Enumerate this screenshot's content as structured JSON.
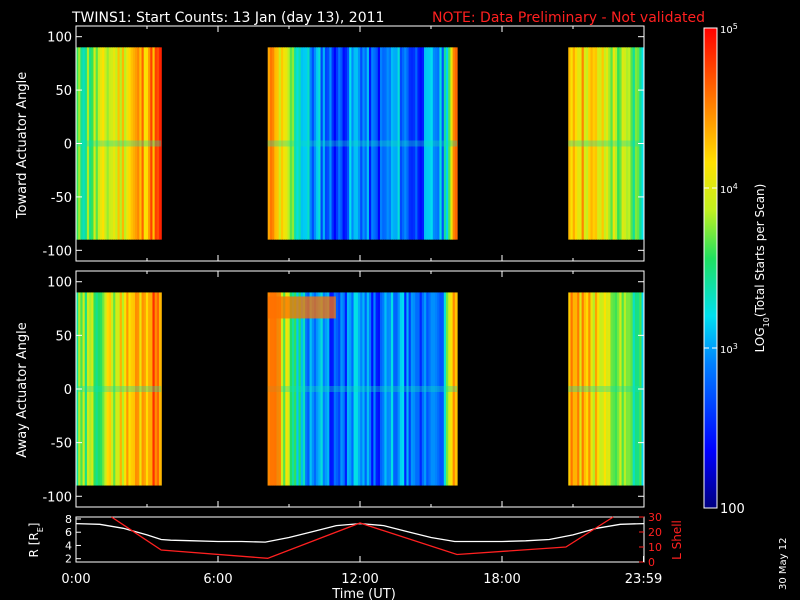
{
  "title": {
    "main": "TWINS1: Start Counts: 13 Jan (day  13), 2011",
    "note": "NOTE: Data Preliminary - Not validated"
  },
  "colors": {
    "background": "#000000",
    "axes": "#ffffff",
    "note": "#ff2020",
    "r_line": "#ffffff",
    "l_line": "#ff2020"
  },
  "colorbar": {
    "label_html": "LOG10(Total Starts per Scan)",
    "ticks": [
      "100",
      "10^3",
      "10^4",
      "10^5"
    ],
    "tick_log_values": [
      2,
      3,
      4,
      5
    ],
    "range_log": [
      2,
      5
    ],
    "colormap": "rainbow"
  },
  "date_stamp": "30 May 12",
  "chart_data": [
    {
      "type": "heatmap",
      "name": "toward",
      "ylabel": "Toward Actuator Angle",
      "ylim": [
        -110,
        110
      ],
      "yticks": [
        -100,
        -50,
        0,
        50,
        100
      ],
      "data_y_range": [
        -90,
        90
      ],
      "segments_hours": [
        [
          0.0,
          3.6
        ],
        [
          8.1,
          16.1
        ],
        [
          20.8,
          23.99
        ]
      ],
      "xlim": [
        0,
        24
      ]
    },
    {
      "type": "heatmap",
      "name": "away",
      "ylabel": "Away Actuator Angle",
      "ylim": [
        -110,
        110
      ],
      "yticks": [
        -100,
        -50,
        0,
        50,
        100
      ],
      "data_y_range": [
        -90,
        90
      ],
      "segments_hours": [
        [
          0.0,
          3.6
        ],
        [
          8.1,
          16.1
        ],
        [
          20.8,
          23.99
        ]
      ],
      "xlim": [
        0,
        24
      ]
    },
    {
      "type": "line",
      "name": "orbit",
      "xlabel": "Time (UT)",
      "xlim": [
        0,
        24
      ],
      "xticks": [
        "0:00",
        "6:00",
        "12:00",
        "18:00",
        "23:59"
      ],
      "xtick_hours": [
        0,
        6,
        12,
        18,
        23.98
      ],
      "left_axis": {
        "label": "R [RE]",
        "ylim": [
          1.5,
          8.3
        ],
        "ticks": [
          2,
          4,
          6,
          8
        ]
      },
      "right_axis": {
        "label": "L Shell",
        "ylim": [
          0,
          30
        ],
        "ticks": [
          0,
          10,
          20,
          30
        ]
      },
      "series": [
        {
          "name": "R",
          "axis": "left",
          "x": [
            0,
            1,
            2,
            3,
            3.6,
            4,
            5,
            6,
            7,
            8,
            9,
            10,
            11,
            12,
            13,
            14,
            15,
            16,
            17,
            18,
            19,
            20,
            21,
            22,
            23,
            24
          ],
          "y": [
            7.3,
            7.2,
            6.6,
            5.6,
            4.9,
            4.8,
            4.7,
            4.6,
            4.6,
            4.5,
            5.2,
            6.1,
            7.0,
            7.3,
            7.0,
            6.1,
            5.2,
            4.6,
            4.6,
            4.6,
            4.7,
            4.9,
            5.6,
            6.6,
            7.2,
            7.3
          ]
        },
        {
          "name": "L Shell",
          "axis": "right",
          "x": [
            1.5,
            3.6,
            8.1,
            12.0,
            16.1,
            20.7,
            22.7
          ],
          "y": [
            30.0,
            8.0,
            2.5,
            26.0,
            5.0,
            10.0,
            30.0
          ]
        }
      ]
    }
  ]
}
